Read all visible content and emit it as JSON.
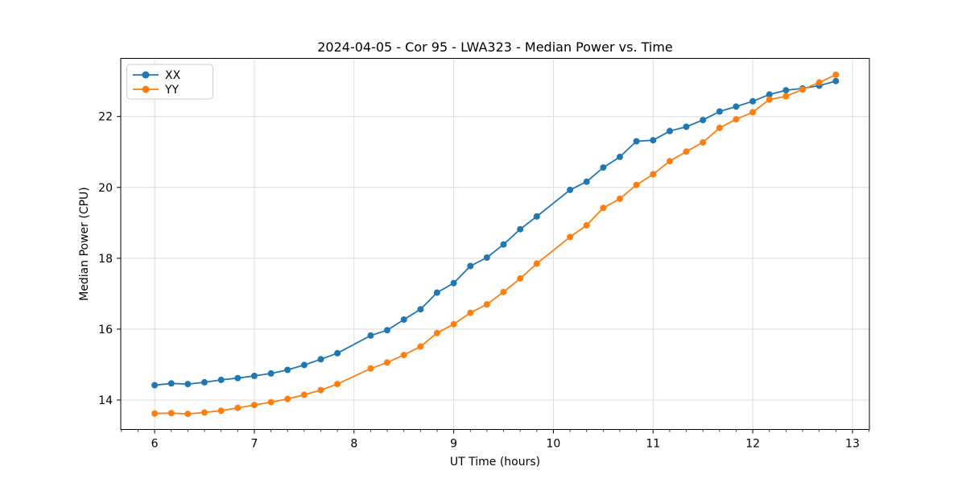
{
  "window": {
    "background": "#ffffff"
  },
  "chart_data": {
    "type": "line",
    "title": "2024-04-05 - Cor 95 - LWA323 - Median Power vs. Time",
    "xlabel": "UT Time (hours)",
    "ylabel": "Median Power (CPU)",
    "xlim": [
      5.66,
      13.17
    ],
    "ylim": [
      13.17,
      23.64
    ],
    "x_ticks": [
      6,
      7,
      8,
      9,
      10,
      11,
      12,
      13
    ],
    "y_ticks": [
      14,
      16,
      18,
      20,
      22
    ],
    "x_minor_step": 0.1666667,
    "grid": true,
    "grid_color": "#dcdcdc",
    "spine_color": "#000000",
    "legend_position": "upper-left",
    "marker": "circle",
    "x": [
      6.0,
      6.167,
      6.333,
      6.5,
      6.667,
      6.833,
      7.0,
      7.167,
      7.333,
      7.5,
      7.667,
      7.833,
      8.167,
      8.333,
      8.5,
      8.667,
      8.833,
      9.0,
      9.167,
      9.333,
      9.5,
      9.667,
      9.833,
      10.167,
      10.333,
      10.5,
      10.667,
      10.833,
      11.0,
      11.167,
      11.333,
      11.5,
      11.667,
      11.833,
      12.0,
      12.167,
      12.333,
      12.5,
      12.667,
      12.833
    ],
    "series": [
      {
        "name": "XX",
        "color": "#1f77b4",
        "values": [
          14.42,
          14.47,
          14.45,
          14.5,
          14.57,
          14.62,
          14.68,
          14.75,
          14.85,
          14.99,
          15.15,
          15.32,
          15.82,
          15.97,
          16.27,
          16.56,
          17.03,
          17.3,
          17.78,
          18.02,
          18.39,
          18.82,
          19.18,
          19.93,
          20.16,
          20.56,
          20.86,
          21.3,
          21.33,
          21.59,
          21.71,
          21.9,
          22.14,
          22.28,
          22.43,
          22.62,
          22.74,
          22.79,
          22.87,
          23.0
        ]
      },
      {
        "name": "YY",
        "color": "#ff7f0e",
        "values": [
          13.62,
          13.63,
          13.61,
          13.65,
          13.7,
          13.78,
          13.86,
          13.94,
          14.03,
          14.15,
          14.28,
          14.45,
          14.89,
          15.06,
          15.27,
          15.51,
          15.89,
          16.14,
          16.46,
          16.7,
          17.05,
          17.43,
          17.85,
          18.6,
          18.93,
          19.42,
          19.68,
          20.07,
          20.37,
          20.74,
          21.01,
          21.27,
          21.68,
          21.92,
          22.12,
          22.48,
          22.57,
          22.76,
          22.96,
          23.18
        ]
      }
    ]
  }
}
